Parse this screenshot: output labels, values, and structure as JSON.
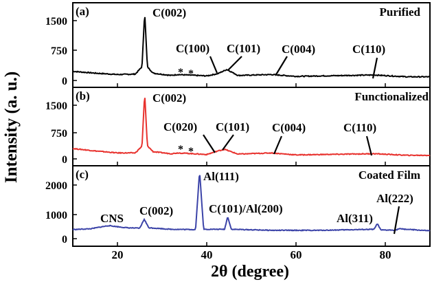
{
  "chart_data": {
    "type": "line",
    "xlabel": "2θ (degree)",
    "ylabel": "Intensity (a. u.)",
    "xlim": [
      10,
      90
    ],
    "x_ticks": [
      "20",
      "40",
      "60",
      "80"
    ],
    "grid": false,
    "panels": [
      {
        "label": "(a)",
        "title": "Purified",
        "color": "#000000",
        "ylim": [
          0,
          1700
        ],
        "y_ticks": [
          "0",
          "750",
          "1500"
        ],
        "baseline": [
          [
            10,
            200
          ],
          [
            15,
            160
          ],
          [
            20,
            130
          ],
          [
            24,
            140
          ],
          [
            25.5,
            300
          ],
          [
            26.1,
            1500
          ],
          [
            26.7,
            300
          ],
          [
            28,
            160
          ],
          [
            32,
            110
          ],
          [
            33.5,
            130
          ],
          [
            35.5,
            120
          ],
          [
            40,
            100
          ],
          [
            42.5,
            150
          ],
          [
            44.5,
            240
          ],
          [
            47,
            110
          ],
          [
            54.5,
            130
          ],
          [
            60,
            90
          ],
          [
            77.5,
            120
          ],
          [
            85,
            80
          ],
          [
            90,
            80
          ]
        ],
        "peaks": [
          "C(002)",
          "C(100)",
          "C(101)",
          "C(004)",
          "C(110)"
        ],
        "markers": [
          "*",
          "*"
        ]
      },
      {
        "label": "(b)",
        "title": "Functionalized",
        "color": "#e8322e",
        "ylim": [
          0,
          1800
        ],
        "y_ticks": [
          "0",
          "750",
          "1500"
        ],
        "baseline": [
          [
            10,
            260
          ],
          [
            15,
            200
          ],
          [
            20,
            150
          ],
          [
            24,
            150
          ],
          [
            25.5,
            320
          ],
          [
            26.1,
            1650
          ],
          [
            26.7,
            330
          ],
          [
            28,
            180
          ],
          [
            32,
            130
          ],
          [
            33.5,
            150
          ],
          [
            35.5,
            140
          ],
          [
            40,
            110
          ],
          [
            42.5,
            200
          ],
          [
            44,
            240
          ],
          [
            47,
            120
          ],
          [
            54.5,
            150
          ],
          [
            60,
            100
          ],
          [
            77.5,
            130
          ],
          [
            85,
            90
          ],
          [
            90,
            90
          ]
        ],
        "peaks": [
          "C(002)",
          "C(020)",
          "C(101)",
          "C(004)",
          "C(110)"
        ],
        "markers": [
          "*",
          "*"
        ]
      },
      {
        "label": "(c)",
        "title": "Coated Film",
        "color": "#3b43a8",
        "ylim": [
          0,
          2800
        ],
        "y_ticks": [
          "0",
          "1000",
          "2000"
        ],
        "baseline": [
          [
            10,
            350
          ],
          [
            14,
            380
          ],
          [
            18,
            500
          ],
          [
            22,
            420
          ],
          [
            25,
            400
          ],
          [
            26,
            750
          ],
          [
            27,
            420
          ],
          [
            32,
            360
          ],
          [
            37.5,
            350
          ],
          [
            38.4,
            2600
          ],
          [
            39.3,
            360
          ],
          [
            44,
            360
          ],
          [
            44.7,
            850
          ],
          [
            45.5,
            360
          ],
          [
            55,
            320
          ],
          [
            65,
            320
          ],
          [
            77.5,
            360
          ],
          [
            78.2,
            580
          ],
          [
            79,
            330
          ],
          [
            82.4,
            330
          ],
          [
            83,
            380
          ],
          [
            90,
            300
          ]
        ],
        "peaks": [
          "CNS",
          "C(002)",
          "Al(111)",
          "C(101)/Al(200)",
          "Al(311)",
          "Al(222)"
        ]
      }
    ]
  }
}
